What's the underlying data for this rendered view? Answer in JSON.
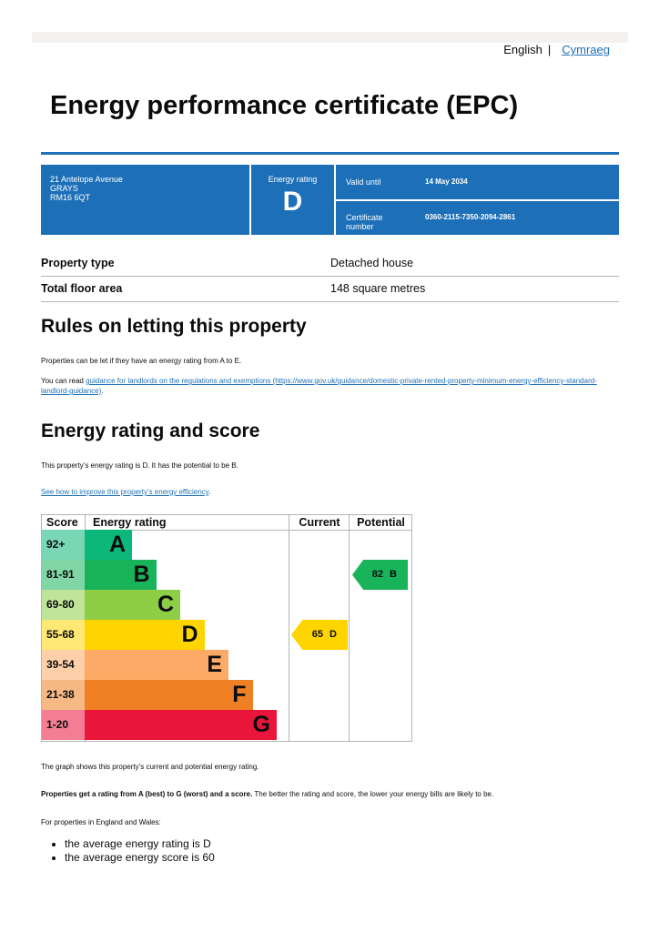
{
  "header": {
    "language_current": "English",
    "language_other": "Cymraeg"
  },
  "title": "Energy performance certificate (EPC)",
  "summary": {
    "address": [
      "21 Antelope Avenue",
      "GRAYS",
      "RM16 6QT"
    ],
    "rating_label": "Energy rating",
    "rating": "D",
    "valid_label": "Valid until",
    "valid_until": "14 May 2034",
    "cert_label": "Certificate number",
    "cert_number": "0360-2115-7350-2094-2861"
  },
  "property": {
    "rows": [
      [
        "Property type",
        "Detached house"
      ],
      [
        "Total floor area",
        "148 square metres"
      ]
    ]
  },
  "letting": {
    "heading": "Rules on letting this property",
    "text": "Properties can be let if they have an energy rating from A to E.",
    "link_prefix": "You can read",
    "link": "guidance for landlords on the regulations and exemptions (https://www.gov.uk/guidance/domestic-private-rented-property-minimum-energy-efficiency-standard-landlord-guidance)",
    "link_suffix": "."
  },
  "energy": {
    "heading": "Energy rating and score",
    "text": "This property’s energy rating is D. It has the potential to be B.",
    "link": "See how to improve this property’s energy efficiency",
    "link_suffix": ".",
    "chart": {
      "columns": [
        "Score",
        "Energy rating",
        "Current",
        "Potential"
      ],
      "bands": [
        {
          "score": "92+",
          "letter": "A",
          "color": "#0bb77a"
        },
        {
          "score": "81-91",
          "letter": "B",
          "color": "#19b459"
        },
        {
          "score": "69-80",
          "letter": "C",
          "color": "#8dce46"
        },
        {
          "score": "55-68",
          "letter": "D",
          "color": "#ffd500"
        },
        {
          "score": "39-54",
          "letter": "E",
          "color": "#fcaa65"
        },
        {
          "score": "21-38",
          "letter": "F",
          "color": "#ef8023"
        },
        {
          "score": "1-20",
          "letter": "G",
          "color": "#e9153b"
        }
      ],
      "current": {
        "score": "65",
        "letter": "D"
      },
      "potential": {
        "score": "82",
        "letter": "B"
      }
    },
    "caption": "The graph shows this property’s current and potential energy rating.",
    "note_bold": "Properties get a rating from A (best) to G (worst) and a score.",
    "note": "The better the rating and score, the lower your energy bills are likely to be.",
    "average_intro": "For properties in England and Wales:",
    "averages": [
      "the average energy rating is D",
      "the average energy score is 60"
    ]
  }
}
